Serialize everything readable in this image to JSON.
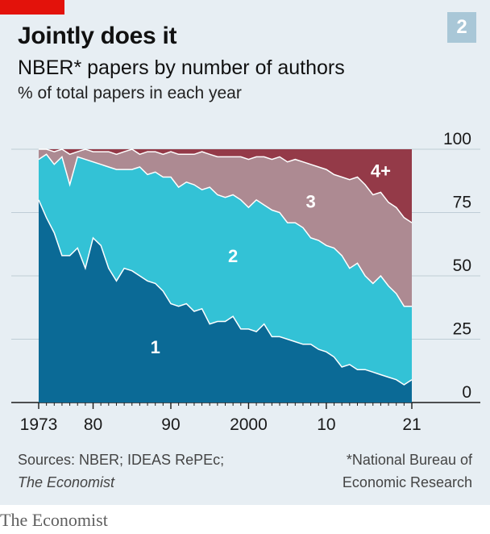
{
  "header": {
    "badge": "2",
    "title": "Jointly does it",
    "subtitle": "NBER* papers by number of authors",
    "unit": "% of total papers in each year"
  },
  "footer": {
    "source_line1": "Sources: NBER; IDEAS RePEc;",
    "source_line2": "The Economist",
    "footnote_line1": "*National Bureau of",
    "footnote_line2": "Economic Research",
    "brand": "The Economist"
  },
  "colors": {
    "s1": "#0b6a96",
    "s2": "#33c2d6",
    "s3": "#ad8a92",
    "s4": "#943a48",
    "panel": "#e7eef3",
    "accent": "#e3120b"
  },
  "chart_data": {
    "type": "area",
    "stacked": true,
    "xlabel": "",
    "ylabel": "",
    "xlim": [
      1973,
      2021
    ],
    "ylim": [
      0,
      100
    ],
    "x_ticks": [
      1973,
      1980,
      1990,
      2000,
      2010,
      2021
    ],
    "x_tick_labels": [
      "1973",
      "80",
      "90",
      "2000",
      "10",
      "21"
    ],
    "y_ticks": [
      0,
      25,
      50,
      75,
      100
    ],
    "y_tick_labels": [
      "0",
      "25",
      "50",
      "75",
      "100"
    ],
    "grid": true,
    "x": [
      1973,
      1974,
      1975,
      1976,
      1977,
      1978,
      1979,
      1980,
      1981,
      1982,
      1983,
      1984,
      1985,
      1986,
      1987,
      1988,
      1989,
      1990,
      1991,
      1992,
      1993,
      1994,
      1995,
      1996,
      1997,
      1998,
      1999,
      2000,
      2001,
      2002,
      2003,
      2004,
      2005,
      2006,
      2007,
      2008,
      2009,
      2010,
      2011,
      2012,
      2013,
      2014,
      2015,
      2016,
      2017,
      2018,
      2019,
      2020,
      2021
    ],
    "series": [
      {
        "name": "1",
        "label": "1",
        "values": [
          80,
          73,
          67,
          58,
          58,
          61,
          53,
          65,
          62,
          53,
          48,
          53,
          52,
          50,
          48,
          47,
          44,
          39,
          38,
          39,
          36,
          37,
          31,
          32,
          32,
          34,
          29,
          29,
          28,
          31,
          26,
          26,
          25,
          24,
          23,
          23,
          21,
          20,
          18,
          14,
          15,
          13,
          13,
          12,
          11,
          10,
          9,
          7,
          9
        ]
      },
      {
        "name": "2",
        "label": "2",
        "values": [
          96,
          98,
          94,
          97,
          86,
          97,
          96,
          95,
          94,
          93,
          92,
          92,
          92,
          93,
          90,
          91,
          89,
          89,
          85,
          87,
          86,
          84,
          85,
          82,
          81,
          82,
          80,
          77,
          80,
          78,
          76,
          75,
          71,
          71,
          69,
          65,
          64,
          62,
          61,
          58,
          53,
          55,
          50,
          47,
          50,
          46,
          43,
          38,
          38
        ]
      },
      {
        "name": "3",
        "label": "3",
        "values": [
          100,
          100,
          99,
          100,
          98,
          99,
          100,
          99,
          99,
          99,
          98,
          99,
          100,
          98,
          99,
          99,
          98,
          99,
          98,
          98,
          98,
          99,
          98,
          97,
          97,
          97,
          97,
          96,
          97,
          97,
          96,
          97,
          95,
          96,
          95,
          94,
          93,
          92,
          90,
          89,
          88,
          89,
          86,
          82,
          83,
          79,
          77,
          73,
          71
        ]
      },
      {
        "name": "4+",
        "label": "4+",
        "values": [
          100,
          100,
          100,
          100,
          100,
          100,
          100,
          100,
          100,
          100,
          100,
          100,
          100,
          100,
          100,
          100,
          100,
          100,
          100,
          100,
          100,
          100,
          100,
          100,
          100,
          100,
          100,
          100,
          100,
          100,
          100,
          100,
          100,
          100,
          100,
          100,
          100,
          100,
          100,
          100,
          100,
          100,
          100,
          100,
          100,
          100,
          100,
          100,
          100
        ]
      }
    ],
    "value_note": "values are cumulative upper boundaries of each stacked band (%)"
  }
}
